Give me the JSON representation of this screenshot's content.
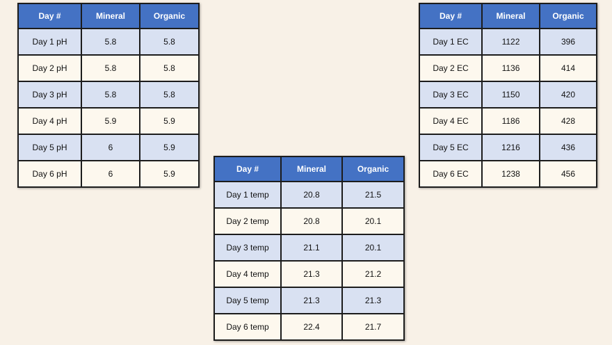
{
  "tables": [
    {
      "header": [
        "Day #",
        "Mineral",
        "Organic"
      ],
      "rows": [
        [
          "Day 1 pH",
          5.8,
          5.8
        ],
        [
          "Day 2 pH",
          5.8,
          5.8
        ],
        [
          "Day 3 pH",
          5.8,
          5.8
        ],
        [
          "Day 4 pH",
          5.9,
          5.9
        ],
        [
          "Day 5 pH",
          6,
          5.9
        ],
        [
          "Day 6 pH",
          6,
          5.9
        ]
      ]
    },
    {
      "header": [
        "Day #",
        "Mineral",
        "Organic"
      ],
      "rows": [
        [
          "Day 1 EC",
          1122,
          396
        ],
        [
          "Day 2 EC",
          1136,
          414
        ],
        [
          "Day 3 EC",
          1150,
          420
        ],
        [
          "Day 4 EC",
          1186,
          428
        ],
        [
          "Day 5 EC",
          1216,
          436
        ],
        [
          "Day 6 EC",
          1238,
          456
        ]
      ]
    },
    {
      "header": [
        "Day #",
        "Mineral",
        "Organic"
      ],
      "rows": [
        [
          "Day 1 temp",
          20.8,
          21.5
        ],
        [
          "Day 2 temp",
          20.8,
          20.1
        ],
        [
          "Day 3 temp",
          21.1,
          20.1
        ],
        [
          "Day 4 temp",
          21.3,
          21.2
        ],
        [
          "Day 5 temp",
          21.3,
          21.3
        ],
        [
          "Day 6 temp",
          22.4,
          21.7
        ]
      ]
    }
  ]
}
